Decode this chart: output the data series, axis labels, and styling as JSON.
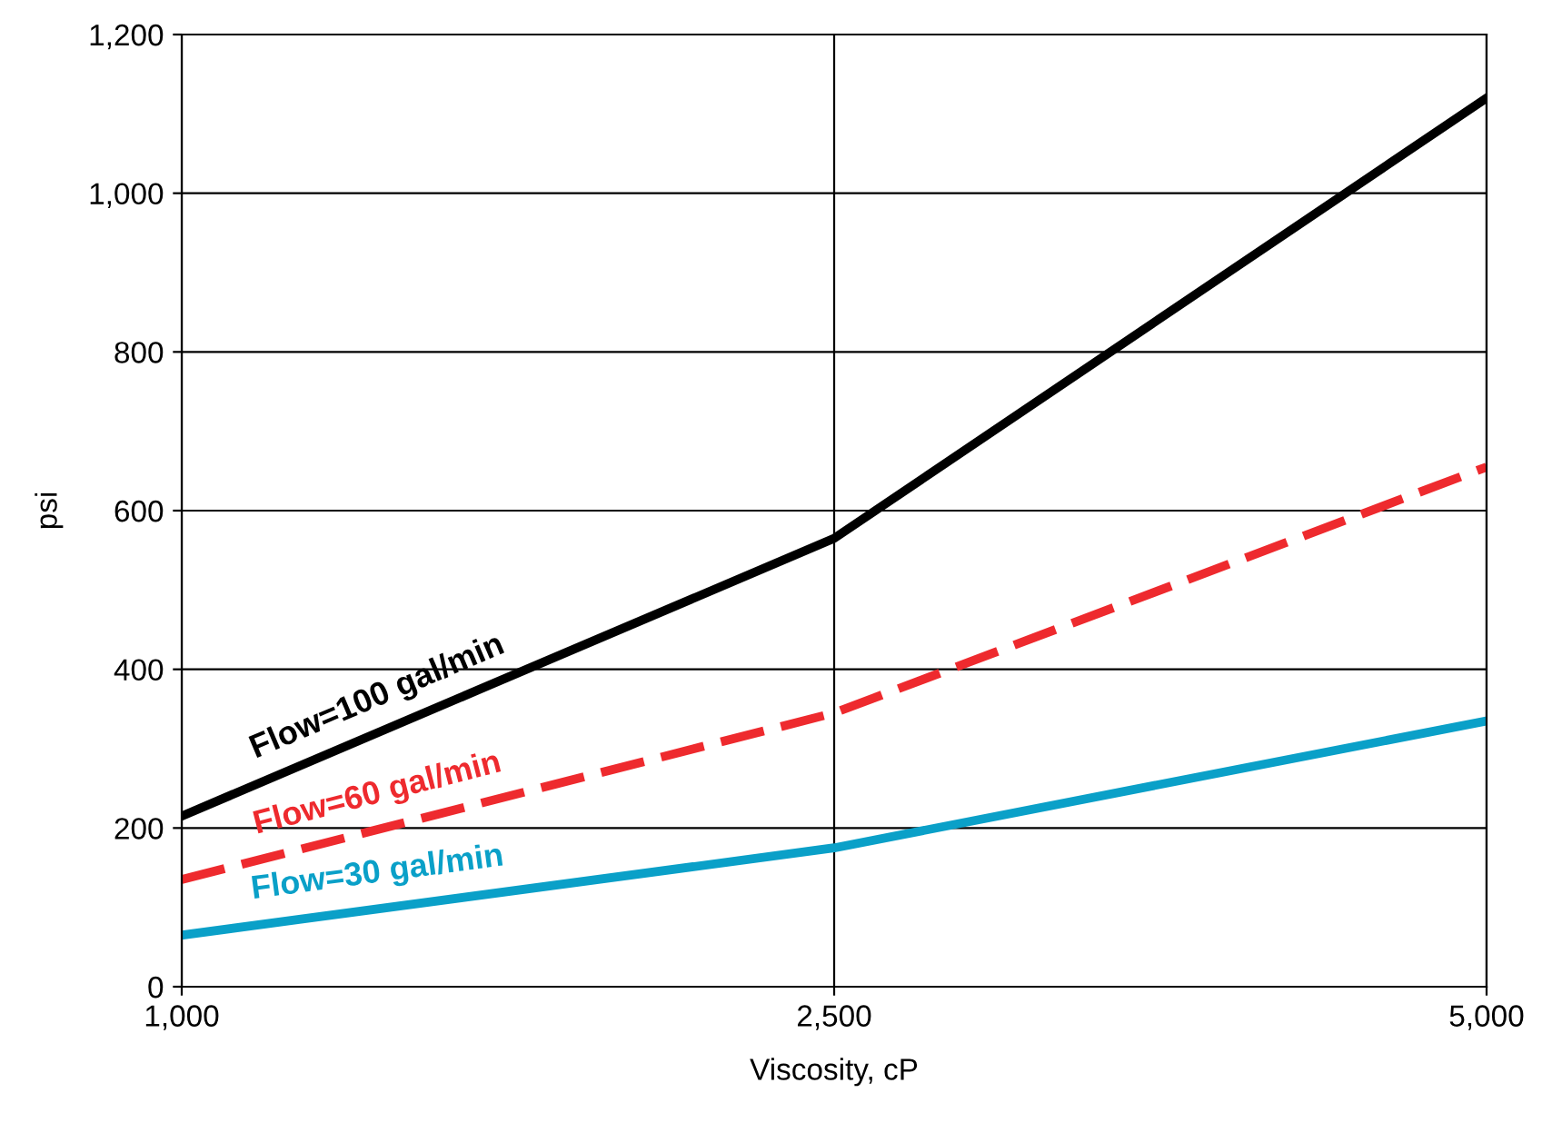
{
  "chart_data": {
    "type": "line",
    "xlabel": "Viscosity, cP",
    "ylabel": "psi",
    "categories": [
      "1,000",
      "2,500",
      "5,000"
    ],
    "ylim": [
      0,
      1200
    ],
    "yticks": [
      0,
      {
        "value": 200,
        "label": "200"
      },
      {
        "value": 400,
        "label": "400"
      },
      {
        "value": 600,
        "label": "600"
      },
      {
        "value": 800,
        "label": "800"
      },
      {
        "value": 1000,
        "label": "1,000"
      },
      {
        "value": 1200,
        "label": "1,200"
      }
    ],
    "grid": true,
    "legend": false,
    "marker": "none",
    "series": [
      {
        "name": "Flow=100 gal/min",
        "color": "#000000",
        "values": [
          215,
          565,
          1120
        ],
        "line_style": "solid"
      },
      {
        "name": "Flow=60 gal/min",
        "color": "#ee2a2e",
        "values": [
          135,
          345,
          655
        ],
        "line_style": "dashed"
      },
      {
        "name": "Flow=30 gal/min",
        "color": "#0aa0c8",
        "values": [
          65,
          175,
          335
        ],
        "line_style": "solid"
      }
    ]
  }
}
